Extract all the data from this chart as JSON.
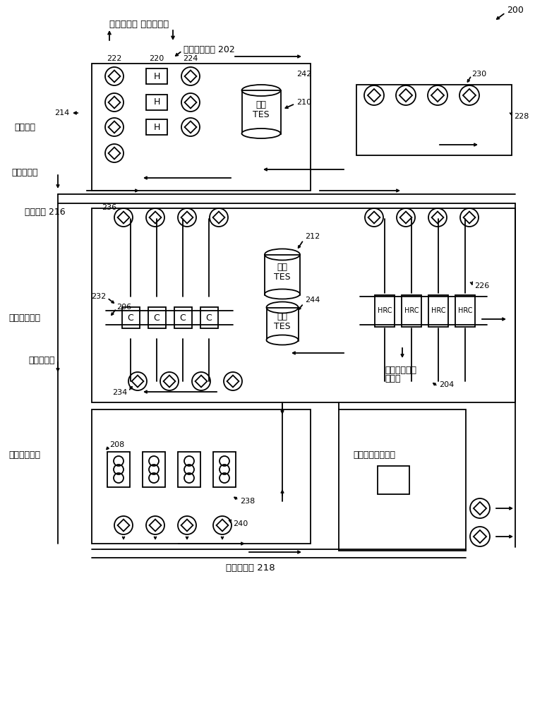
{
  "title": "200",
  "bg_color": "#ffffff",
  "line_color": "#000000",
  "labels": {
    "top_left": "前往建筑物 来自建筑物",
    "heater_subsystem": "加热器子设施 202",
    "hot_water_loop": "热水回路",
    "from_building": "来自建筑物",
    "chilled_water_loop": "冷水回路 216",
    "chiller_subsystem": "冷却器子设施",
    "label_206": "206",
    "heat_recovery_chiller": "热回收冷却器\n子设施",
    "label_204": "204",
    "cooling_tower": "冷却塔子设施",
    "label_208": "208",
    "heat_exchanger": "热交换器（排热）",
    "condenser_loop": "冷凝水回路 218",
    "to_building_lower": "前往建筑物",
    "hot_TES": "热的\nTES",
    "cold_TES": "冷的\nTES",
    "label_210": "210",
    "label_212": "212",
    "label_214": "214",
    "label_220": "220",
    "label_222": "222",
    "label_224": "224",
    "label_226": "226",
    "label_228": "228",
    "label_230": "230",
    "label_232": "232",
    "label_234": "234",
    "label_236": "236",
    "label_238": "238",
    "label_240": "240",
    "label_242": "242",
    "label_244": "244"
  }
}
